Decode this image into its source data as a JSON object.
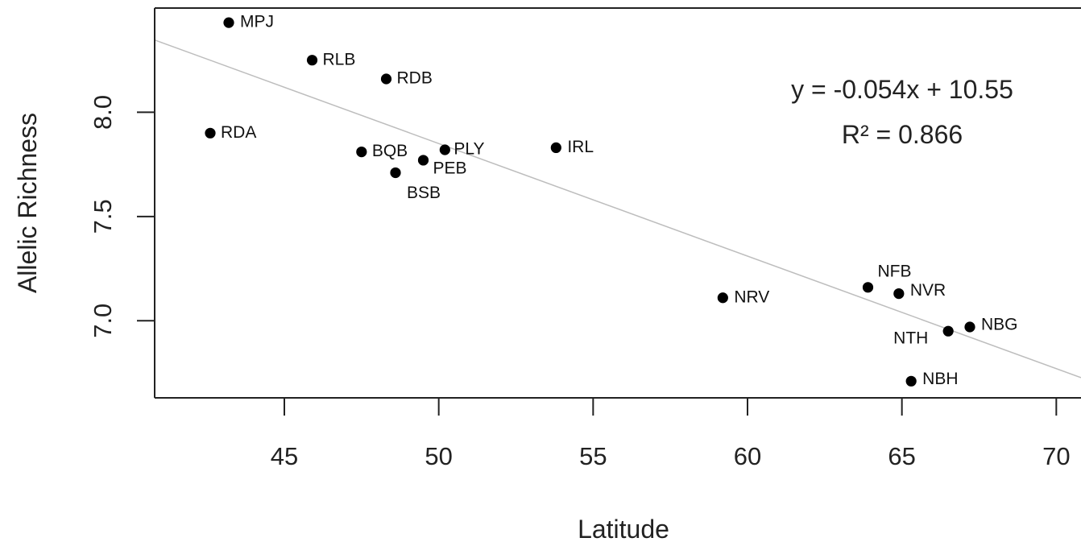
{
  "chart_data": {
    "type": "scatter",
    "title": "",
    "xlabel": "Latitude",
    "ylabel": "Allelic Richness",
    "xlim": [
      40.8,
      70.8
    ],
    "ylim": [
      6.63,
      8.5
    ],
    "x_ticks": [
      45,
      50,
      55,
      60,
      65,
      70
    ],
    "y_ticks": [
      7.0,
      7.5,
      8.0
    ],
    "x_tick_labels": [
      "45",
      "50",
      "55",
      "60",
      "65",
      "70"
    ],
    "y_tick_labels": [
      "7.0",
      "7.5",
      "8.0"
    ],
    "grid": false,
    "legend": "none",
    "points": [
      {
        "label": "MPJ",
        "x": 43.2,
        "y": 8.43
      },
      {
        "label": "RLB",
        "x": 45.9,
        "y": 8.25
      },
      {
        "label": "RDB",
        "x": 48.3,
        "y": 8.16
      },
      {
        "label": "RDA",
        "x": 42.6,
        "y": 7.9
      },
      {
        "label": "BQB",
        "x": 47.5,
        "y": 7.81
      },
      {
        "label": "PLY",
        "x": 50.2,
        "y": 7.82
      },
      {
        "label": "PEB",
        "x": 49.5,
        "y": 7.77
      },
      {
        "label": "BSB",
        "x": 48.6,
        "y": 7.71
      },
      {
        "label": "IRL",
        "x": 53.8,
        "y": 7.83
      },
      {
        "label": "NRV",
        "x": 59.2,
        "y": 7.11
      },
      {
        "label": "NFB",
        "x": 63.9,
        "y": 7.16
      },
      {
        "label": "NVR",
        "x": 64.9,
        "y": 7.13
      },
      {
        "label": "NBG",
        "x": 67.2,
        "y": 6.97
      },
      {
        "label": "NTH",
        "x": 66.5,
        "y": 6.95
      },
      {
        "label": "NBH",
        "x": 65.3,
        "y": 6.71
      }
    ],
    "regression": {
      "slope": -0.054,
      "intercept": 10.55,
      "equation_text": "y = -0.054x + 10.55",
      "r2_text": "R² = 0.866"
    },
    "colors": {
      "points": "#000000",
      "axes": "#222222",
      "trendline": "#bdbdbd"
    }
  }
}
